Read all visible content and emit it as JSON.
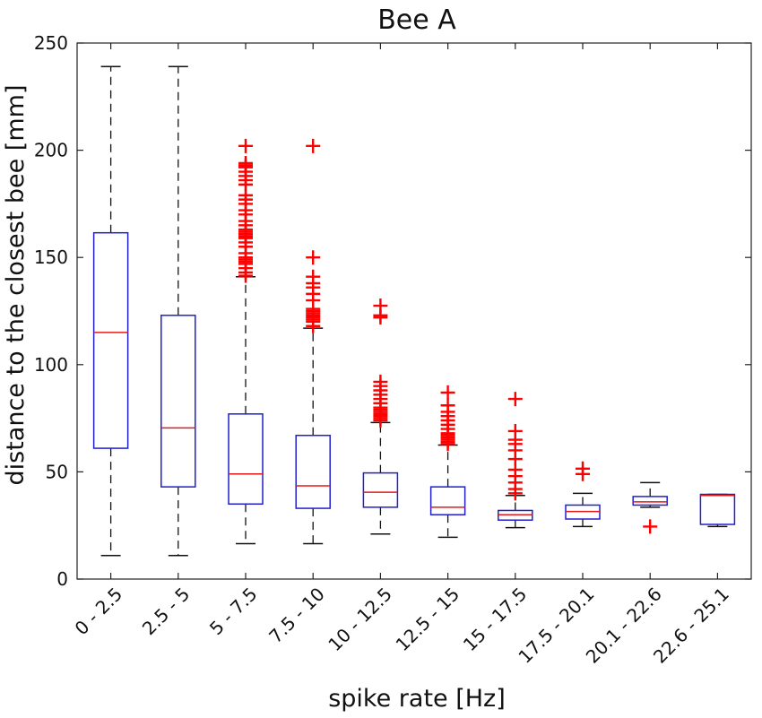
{
  "chart_data": {
    "type": "box",
    "title": "Bee A",
    "xlabel": "spike rate [Hz]",
    "ylabel": "distance to the closest bee [mm]",
    "ylim": [
      0,
      250
    ],
    "yticks": [
      0,
      50,
      100,
      150,
      200,
      250
    ],
    "grid": false,
    "categories": [
      "0 - 2.5",
      "2.5 - 5",
      "5 - 7.5",
      "7.5 - 10",
      "10 - 12.5",
      "12.5 - 15",
      "15 - 17.5",
      "17.5 - 20.1",
      "20.1 - 22.6",
      "22.6 - 25.1"
    ],
    "boxes": [
      {
        "whisker_low": 11,
        "q1": 61,
        "median": 115,
        "q3": 161.5,
        "whisker_high": 239,
        "outliers": []
      },
      {
        "whisker_low": 11,
        "q1": 43,
        "median": 70.5,
        "q3": 123,
        "whisker_high": 239,
        "outliers": []
      },
      {
        "whisker_low": 16.5,
        "q1": 35,
        "median": 49,
        "q3": 77,
        "whisker_high": 141,
        "outliers": [
          141.5,
          143,
          145,
          147,
          148,
          149,
          150,
          152,
          155,
          157,
          159,
          160,
          161,
          162,
          163,
          165,
          167,
          170,
          172,
          175,
          177,
          179,
          184,
          186,
          188,
          190,
          192,
          193,
          194,
          202
        ]
      },
      {
        "whisker_low": 16.5,
        "q1": 33,
        "median": 43.5,
        "q3": 67,
        "whisker_high": 117,
        "outliers": [
          118,
          120,
          121,
          122,
          123,
          124,
          125,
          126,
          130,
          133,
          136,
          138,
          141,
          150,
          202
        ]
      },
      {
        "whisker_low": 21,
        "q1": 33.5,
        "median": 40.5,
        "q3": 49.5,
        "whisker_high": 73,
        "outliers": [
          74,
          75,
          76,
          77,
          78,
          79,
          80,
          82,
          84,
          86,
          88,
          90,
          92,
          122,
          123,
          127.5
        ]
      },
      {
        "whisker_low": 19.5,
        "q1": 30,
        "median": 33.5,
        "q3": 43,
        "whisker_high": 62.5,
        "outliers": [
          63,
          64,
          65,
          66,
          67,
          68,
          70,
          72,
          74,
          76,
          78,
          81,
          87
        ]
      },
      {
        "whisker_low": 24,
        "q1": 27.5,
        "median": 30,
        "q3": 32,
        "whisker_high": 39,
        "outliers": [
          40,
          42,
          45,
          48,
          51,
          56,
          60,
          63,
          65,
          69,
          84
        ]
      },
      {
        "whisker_low": 24.5,
        "q1": 28,
        "median": 31.5,
        "q3": 34.5,
        "whisker_high": 40,
        "outliers": [
          49,
          51.5
        ]
      },
      {
        "whisker_low": 33.5,
        "q1": 34.5,
        "median": 36,
        "q3": 38.5,
        "whisker_high": 45,
        "outliers": [
          24.5
        ]
      },
      {
        "whisker_low": 24.5,
        "q1": 25.5,
        "median": 39,
        "q3": 39.5,
        "whisker_high": 39.5,
        "outliers": []
      }
    ],
    "colors": {
      "box": "#1f1fd1",
      "median": "#e31a1c",
      "whisker": "#111111",
      "outlier": "#ff0000",
      "axis": "#222222"
    }
  }
}
